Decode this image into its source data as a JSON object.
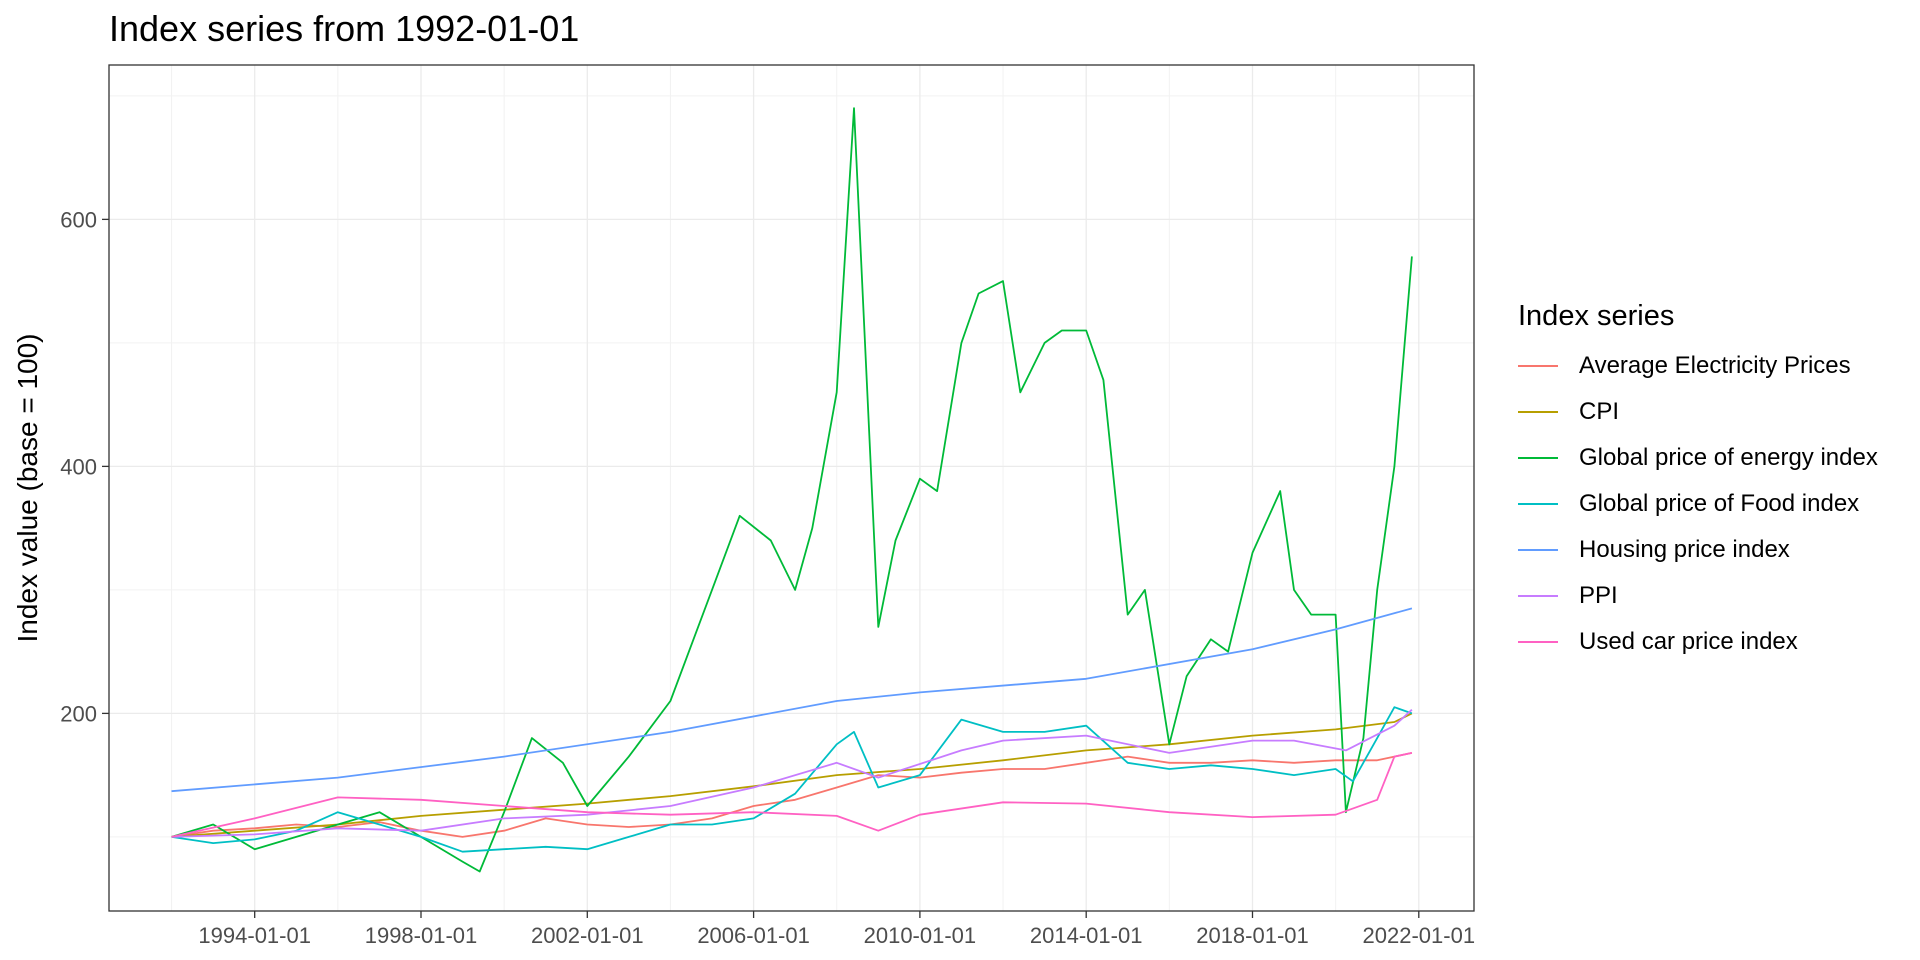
{
  "title": "Index series from 1992-01-01",
  "chart_data": {
    "type": "line",
    "title": "Index series from 1992-01-01",
    "xlabel": "",
    "ylabel": "Index value (base = 100)",
    "legend_title": "Index series",
    "legend_position": "right",
    "grid": true,
    "x_ticks": [
      "1994-01-01",
      "1998-01-01",
      "2002-01-01",
      "2006-01-01",
      "2010-01-01",
      "2014-01-01",
      "2018-01-01",
      "2022-01-01"
    ],
    "y_ticks": [
      200,
      400,
      600
    ],
    "xlim": [
      "1990-07-01",
      "2023-05-01"
    ],
    "ylim": [
      40,
      725
    ],
    "series": [
      {
        "name": "Average Electricity Prices",
        "color": "#F8766D",
        "points": [
          [
            "1992-01-01",
            100
          ],
          [
            "1993-01-01",
            105
          ],
          [
            "1994-01-01",
            107
          ],
          [
            "1995-01-01",
            110
          ],
          [
            "1996-01-01",
            108
          ],
          [
            "1997-01-01",
            112
          ],
          [
            "1998-01-01",
            105
          ],
          [
            "1999-01-01",
            100
          ],
          [
            "2000-01-01",
            105
          ],
          [
            "2001-01-01",
            115
          ],
          [
            "2002-01-01",
            110
          ],
          [
            "2003-01-01",
            108
          ],
          [
            "2004-01-01",
            110
          ],
          [
            "2005-01-01",
            115
          ],
          [
            "2006-01-01",
            125
          ],
          [
            "2007-01-01",
            130
          ],
          [
            "2008-01-01",
            140
          ],
          [
            "2009-01-01",
            150
          ],
          [
            "2010-01-01",
            148
          ],
          [
            "2011-01-01",
            152
          ],
          [
            "2012-01-01",
            155
          ],
          [
            "2013-01-01",
            155
          ],
          [
            "2014-01-01",
            160
          ],
          [
            "2015-01-01",
            165
          ],
          [
            "2016-01-01",
            160
          ],
          [
            "2017-01-01",
            160
          ],
          [
            "2018-01-01",
            162
          ],
          [
            "2019-01-01",
            160
          ],
          [
            "2020-01-01",
            162
          ],
          [
            "2021-01-01",
            162
          ],
          [
            "2021-06-01",
            165
          ],
          [
            "2021-11-01",
            168
          ]
        ]
      },
      {
        "name": "CPI",
        "color": "#B79F00",
        "points": [
          [
            "1992-01-01",
            100
          ],
          [
            "1994-01-01",
            105
          ],
          [
            "1996-01-01",
            110
          ],
          [
            "1998-01-01",
            117
          ],
          [
            "2000-01-01",
            122
          ],
          [
            "2002-01-01",
            127
          ],
          [
            "2004-01-01",
            133
          ],
          [
            "2006-01-01",
            141
          ],
          [
            "2008-01-01",
            150
          ],
          [
            "2010-01-01",
            155
          ],
          [
            "2012-01-01",
            162
          ],
          [
            "2014-01-01",
            170
          ],
          [
            "2016-01-01",
            175
          ],
          [
            "2018-01-01",
            182
          ],
          [
            "2020-01-01",
            187
          ],
          [
            "2021-06-01",
            193
          ],
          [
            "2021-11-01",
            200
          ]
        ]
      },
      {
        "name": "Global price of energy index",
        "color": "#00BA38",
        "points": [
          [
            "1992-01-01",
            100
          ],
          [
            "1993-01-01",
            110
          ],
          [
            "1994-01-01",
            90
          ],
          [
            "1995-01-01",
            100
          ],
          [
            "1996-01-01",
            110
          ],
          [
            "1997-01-01",
            120
          ],
          [
            "1998-01-01",
            100
          ],
          [
            "1999-01-01",
            80
          ],
          [
            "1999-06-01",
            72
          ],
          [
            "2000-01-01",
            120
          ],
          [
            "2000-09-01",
            180
          ],
          [
            "2001-06-01",
            160
          ],
          [
            "2002-01-01",
            125
          ],
          [
            "2003-01-01",
            165
          ],
          [
            "2004-01-01",
            210
          ],
          [
            "2005-01-01",
            300
          ],
          [
            "2005-09-01",
            360
          ],
          [
            "2006-06-01",
            340
          ],
          [
            "2007-01-01",
            300
          ],
          [
            "2007-06-01",
            350
          ],
          [
            "2008-01-01",
            460
          ],
          [
            "2008-06-01",
            690
          ],
          [
            "2009-01-01",
            270
          ],
          [
            "2009-06-01",
            340
          ],
          [
            "2010-01-01",
            390
          ],
          [
            "2010-06-01",
            380
          ],
          [
            "2011-01-01",
            500
          ],
          [
            "2011-06-01",
            540
          ],
          [
            "2012-01-01",
            550
          ],
          [
            "2012-06-01",
            460
          ],
          [
            "2013-01-01",
            500
          ],
          [
            "2013-06-01",
            510
          ],
          [
            "2014-01-01",
            510
          ],
          [
            "2014-06-01",
            470
          ],
          [
            "2015-01-01",
            280
          ],
          [
            "2015-06-01",
            300
          ],
          [
            "2016-01-01",
            175
          ],
          [
            "2016-06-01",
            230
          ],
          [
            "2017-01-01",
            260
          ],
          [
            "2017-06-01",
            250
          ],
          [
            "2018-01-01",
            330
          ],
          [
            "2018-09-01",
            380
          ],
          [
            "2019-01-01",
            300
          ],
          [
            "2019-06-01",
            280
          ],
          [
            "2020-01-01",
            280
          ],
          [
            "2020-04-01",
            120
          ],
          [
            "2020-09-01",
            180
          ],
          [
            "2021-01-01",
            300
          ],
          [
            "2021-06-01",
            400
          ],
          [
            "2021-11-01",
            570
          ]
        ]
      },
      {
        "name": "Global price of Food index",
        "color": "#00BFC4",
        "points": [
          [
            "1992-01-01",
            100
          ],
          [
            "1993-01-01",
            95
          ],
          [
            "1994-01-01",
            98
          ],
          [
            "1995-01-01",
            105
          ],
          [
            "1996-01-01",
            120
          ],
          [
            "1997-01-01",
            110
          ],
          [
            "1998-01-01",
            100
          ],
          [
            "1999-01-01",
            88
          ],
          [
            "2000-01-01",
            90
          ],
          [
            "2001-01-01",
            92
          ],
          [
            "2002-01-01",
            90
          ],
          [
            "2003-01-01",
            100
          ],
          [
            "2004-01-01",
            110
          ],
          [
            "2005-01-01",
            110
          ],
          [
            "2006-01-01",
            115
          ],
          [
            "2007-01-01",
            135
          ],
          [
            "2008-01-01",
            175
          ],
          [
            "2008-06-01",
            185
          ],
          [
            "2009-01-01",
            140
          ],
          [
            "2010-01-01",
            150
          ],
          [
            "2011-01-01",
            195
          ],
          [
            "2012-01-01",
            185
          ],
          [
            "2013-01-01",
            185
          ],
          [
            "2014-01-01",
            190
          ],
          [
            "2015-01-01",
            160
          ],
          [
            "2016-01-01",
            155
          ],
          [
            "2017-01-01",
            158
          ],
          [
            "2018-01-01",
            155
          ],
          [
            "2019-01-01",
            150
          ],
          [
            "2020-01-01",
            155
          ],
          [
            "2020-06-01",
            145
          ],
          [
            "2021-01-01",
            180
          ],
          [
            "2021-06-01",
            205
          ],
          [
            "2021-11-01",
            200
          ]
        ]
      },
      {
        "name": "Housing price index",
        "color": "#619CFF",
        "points": [
          [
            "1992-01-01",
            137
          ],
          [
            "1996-01-01",
            148
          ],
          [
            "2000-01-01",
            165
          ],
          [
            "2004-01-01",
            185
          ],
          [
            "2008-01-01",
            210
          ],
          [
            "2010-01-01",
            217
          ],
          [
            "2014-01-01",
            228
          ],
          [
            "2018-01-01",
            252
          ],
          [
            "2020-01-01",
            268
          ],
          [
            "2021-11-01",
            285
          ]
        ]
      },
      {
        "name": "PPI",
        "color": "#C77CFF",
        "points": [
          [
            "1992-01-01",
            100
          ],
          [
            "1994-01-01",
            102
          ],
          [
            "1996-01-01",
            107
          ],
          [
            "1998-01-01",
            105
          ],
          [
            "2000-01-01",
            115
          ],
          [
            "2002-01-01",
            118
          ],
          [
            "2004-01-01",
            125
          ],
          [
            "2006-01-01",
            140
          ],
          [
            "2008-01-01",
            160
          ],
          [
            "2009-01-01",
            148
          ],
          [
            "2011-01-01",
            170
          ],
          [
            "2012-01-01",
            178
          ],
          [
            "2014-01-01",
            182
          ],
          [
            "2016-01-01",
            168
          ],
          [
            "2018-01-01",
            178
          ],
          [
            "2019-01-01",
            178
          ],
          [
            "2020-04-01",
            170
          ],
          [
            "2021-06-01",
            190
          ],
          [
            "2021-11-01",
            203
          ]
        ]
      },
      {
        "name": "Used car price index",
        "color": "#FF61C3",
        "points": [
          [
            "1992-01-01",
            100
          ],
          [
            "1994-01-01",
            115
          ],
          [
            "1996-01-01",
            132
          ],
          [
            "1998-01-01",
            130
          ],
          [
            "2000-01-01",
            125
          ],
          [
            "2002-01-01",
            120
          ],
          [
            "2004-01-01",
            118
          ],
          [
            "2006-01-01",
            120
          ],
          [
            "2008-01-01",
            117
          ],
          [
            "2009-01-01",
            105
          ],
          [
            "2010-01-01",
            118
          ],
          [
            "2012-01-01",
            128
          ],
          [
            "2014-01-01",
            127
          ],
          [
            "2016-01-01",
            120
          ],
          [
            "2018-01-01",
            116
          ],
          [
            "2020-01-01",
            118
          ],
          [
            "2021-01-01",
            130
          ],
          [
            "2021-06-01",
            165
          ],
          [
            "2021-11-01",
            168
          ]
        ]
      }
    ]
  }
}
